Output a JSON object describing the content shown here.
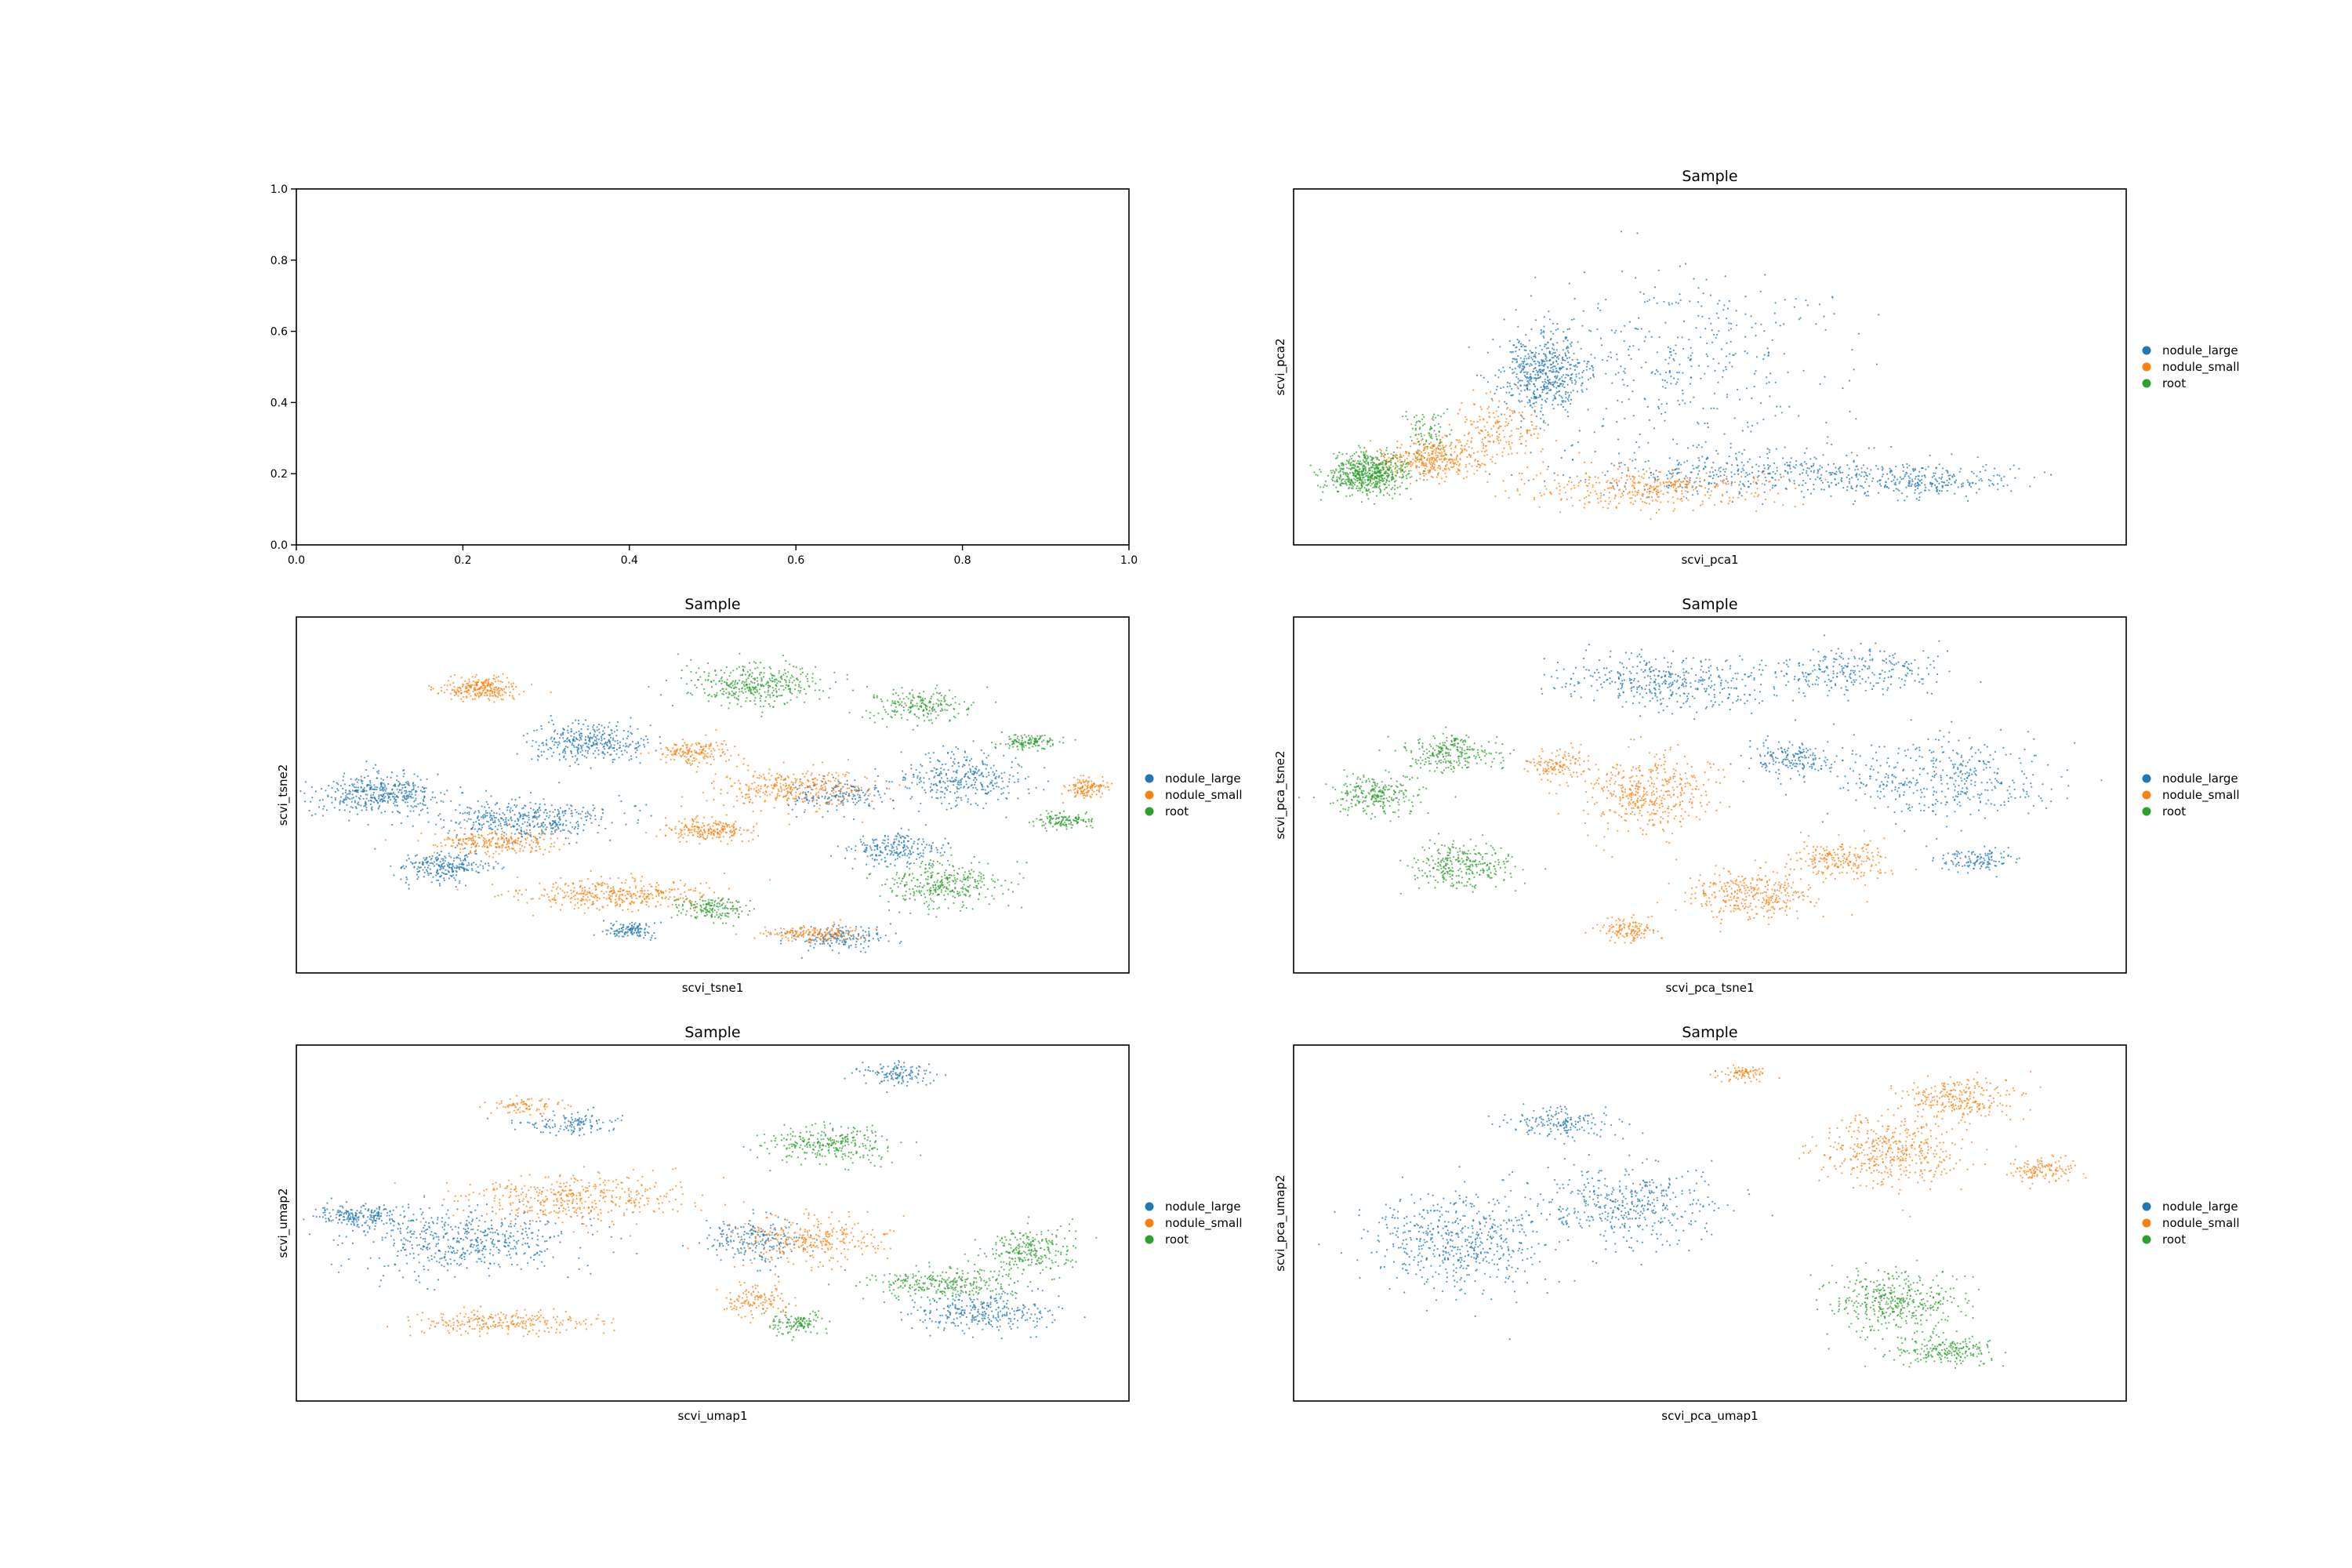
{
  "colors": {
    "nodule_large": "#1f77b4",
    "nodule_small": "#ff7f0e",
    "root": "#2ca02c"
  },
  "chart_data": [
    {
      "type": "line",
      "title": "",
      "xlabel": "",
      "ylabel": "",
      "xlim": [
        0,
        1
      ],
      "ylim": [
        0,
        1
      ],
      "x_ticks": [
        "0.0",
        "0.2",
        "0.4",
        "0.6",
        "0.8",
        "1.0"
      ],
      "y_ticks": [
        "0.0",
        "0.2",
        "0.4",
        "0.6",
        "0.8",
        "1.0"
      ],
      "series": []
    },
    {
      "type": "scatter",
      "title": "Sample",
      "xlabel": "scvi_pca1",
      "ylabel": "scvi_pca2",
      "legend": "right",
      "series": [
        {
          "name": "nodule_large",
          "clusters": [
            [
              0.3,
              0.48,
              0.05,
              0.11,
              1.3
            ],
            [
              0.55,
              0.2,
              0.2,
              0.06,
              1.0
            ],
            [
              0.48,
              0.52,
              0.17,
              0.22,
              0.9
            ],
            [
              0.75,
              0.18,
              0.1,
              0.04,
              0.6
            ]
          ]
        },
        {
          "name": "nodule_small",
          "clusters": [
            [
              0.17,
              0.24,
              0.06,
              0.05,
              0.9
            ],
            [
              0.42,
              0.16,
              0.14,
              0.05,
              0.9
            ],
            [
              0.25,
              0.33,
              0.05,
              0.08,
              0.4
            ]
          ]
        },
        {
          "name": "root",
          "clusters": [
            [
              0.09,
              0.2,
              0.045,
              0.05,
              1.5
            ],
            [
              0.16,
              0.32,
              0.03,
              0.06,
              0.2
            ]
          ]
        }
      ]
    },
    {
      "type": "scatter",
      "title": "Sample",
      "xlabel": "scvi_tsne1",
      "ylabel": "scvi_tsne2",
      "legend": "right",
      "series": [
        {
          "name": "nodule_large",
          "clusters": [
            [
              0.1,
              0.5,
              0.07,
              0.05,
              1.0
            ],
            [
              0.28,
              0.43,
              0.1,
              0.05,
              1.0
            ],
            [
              0.35,
              0.65,
              0.06,
              0.05,
              0.8
            ],
            [
              0.18,
              0.3,
              0.05,
              0.04,
              0.6
            ],
            [
              0.8,
              0.55,
              0.07,
              0.07,
              0.8
            ],
            [
              0.72,
              0.35,
              0.05,
              0.04,
              0.5
            ],
            [
              0.65,
              0.1,
              0.05,
              0.03,
              0.4
            ],
            [
              0.4,
              0.12,
              0.03,
              0.02,
              0.3
            ],
            [
              0.65,
              0.5,
              0.05,
              0.04,
              0.4
            ]
          ]
        },
        {
          "name": "nodule_small",
          "clusters": [
            [
              0.22,
              0.8,
              0.04,
              0.03,
              0.6
            ],
            [
              0.38,
              0.22,
              0.1,
              0.04,
              0.9
            ],
            [
              0.6,
              0.52,
              0.08,
              0.05,
              0.8
            ],
            [
              0.5,
              0.4,
              0.05,
              0.03,
              0.5
            ],
            [
              0.24,
              0.37,
              0.07,
              0.03,
              0.6
            ],
            [
              0.62,
              0.11,
              0.05,
              0.02,
              0.4
            ],
            [
              0.95,
              0.52,
              0.02,
              0.03,
              0.3
            ],
            [
              0.48,
              0.62,
              0.04,
              0.03,
              0.4
            ]
          ]
        },
        {
          "name": "root",
          "clusters": [
            [
              0.55,
              0.81,
              0.08,
              0.05,
              0.9
            ],
            [
              0.75,
              0.75,
              0.05,
              0.04,
              0.5
            ],
            [
              0.78,
              0.25,
              0.07,
              0.06,
              0.8
            ],
            [
              0.5,
              0.18,
              0.04,
              0.03,
              0.4
            ],
            [
              0.92,
              0.43,
              0.03,
              0.02,
              0.3
            ],
            [
              0.88,
              0.65,
              0.03,
              0.02,
              0.3
            ]
          ]
        }
      ]
    },
    {
      "type": "scatter",
      "title": "Sample",
      "xlabel": "scvi_pca_tsne1",
      "ylabel": "scvi_pca_tsne2",
      "legend": "right",
      "series": [
        {
          "name": "nodule_large",
          "clusters": [
            [
              0.45,
              0.82,
              0.12,
              0.07,
              1.0
            ],
            [
              0.68,
              0.85,
              0.09,
              0.06,
              0.6
            ],
            [
              0.78,
              0.55,
              0.12,
              0.1,
              1.0
            ],
            [
              0.6,
              0.6,
              0.05,
              0.04,
              0.4
            ],
            [
              0.82,
              0.32,
              0.04,
              0.03,
              0.3
            ]
          ]
        },
        {
          "name": "nodule_small",
          "clusters": [
            [
              0.43,
              0.5,
              0.07,
              0.1,
              1.0
            ],
            [
              0.55,
              0.22,
              0.07,
              0.06,
              0.8
            ],
            [
              0.66,
              0.32,
              0.05,
              0.05,
              0.5
            ],
            [
              0.4,
              0.12,
              0.03,
              0.03,
              0.3
            ],
            [
              0.32,
              0.58,
              0.03,
              0.04,
              0.3
            ]
          ]
        },
        {
          "name": "root",
          "clusters": [
            [
              0.1,
              0.5,
              0.05,
              0.05,
              0.6
            ],
            [
              0.19,
              0.62,
              0.05,
              0.05,
              0.6
            ],
            [
              0.2,
              0.3,
              0.06,
              0.06,
              0.7
            ]
          ]
        }
      ]
    },
    {
      "type": "scatter",
      "title": "Sample",
      "xlabel": "scvi_umap1",
      "ylabel": "scvi_umap2",
      "legend": "right",
      "series": [
        {
          "name": "nodule_large",
          "clusters": [
            [
              0.2,
              0.45,
              0.12,
              0.08,
              1.2
            ],
            [
              0.08,
              0.52,
              0.05,
              0.03,
              0.5
            ],
            [
              0.55,
              0.45,
              0.05,
              0.06,
              0.5
            ],
            [
              0.82,
              0.25,
              0.08,
              0.05,
              0.7
            ],
            [
              0.33,
              0.78,
              0.05,
              0.03,
              0.3
            ],
            [
              0.72,
              0.92,
              0.04,
              0.03,
              0.3
            ]
          ]
        },
        {
          "name": "nodule_small",
          "clusters": [
            [
              0.34,
              0.57,
              0.12,
              0.06,
              1.0
            ],
            [
              0.25,
              0.22,
              0.1,
              0.03,
              0.6
            ],
            [
              0.62,
              0.45,
              0.08,
              0.06,
              0.7
            ],
            [
              0.55,
              0.28,
              0.04,
              0.04,
              0.3
            ],
            [
              0.28,
              0.83,
              0.04,
              0.02,
              0.2
            ]
          ]
        },
        {
          "name": "root",
          "clusters": [
            [
              0.64,
              0.72,
              0.07,
              0.05,
              0.7
            ],
            [
              0.78,
              0.33,
              0.08,
              0.04,
              0.7
            ],
            [
              0.88,
              0.42,
              0.05,
              0.06,
              0.6
            ],
            [
              0.6,
              0.22,
              0.03,
              0.03,
              0.3
            ]
          ]
        }
      ]
    },
    {
      "type": "scatter",
      "title": "Sample",
      "xlabel": "scvi_pca_umap1",
      "ylabel": "scvi_pca_umap2",
      "legend": "right",
      "series": [
        {
          "name": "nodule_large",
          "clusters": [
            [
              0.2,
              0.45,
              0.1,
              0.12,
              1.3
            ],
            [
              0.4,
              0.55,
              0.1,
              0.1,
              1.0
            ],
            [
              0.32,
              0.78,
              0.06,
              0.04,
              0.4
            ]
          ]
        },
        {
          "name": "nodule_small",
          "clusters": [
            [
              0.72,
              0.7,
              0.08,
              0.09,
              1.0
            ],
            [
              0.8,
              0.85,
              0.06,
              0.05,
              0.6
            ],
            [
              0.9,
              0.65,
              0.04,
              0.03,
              0.3
            ],
            [
              0.54,
              0.92,
              0.03,
              0.02,
              0.2
            ]
          ]
        },
        {
          "name": "root",
          "clusters": [
            [
              0.72,
              0.28,
              0.07,
              0.08,
              1.0
            ],
            [
              0.78,
              0.14,
              0.06,
              0.04,
              0.5
            ]
          ]
        }
      ]
    }
  ]
}
